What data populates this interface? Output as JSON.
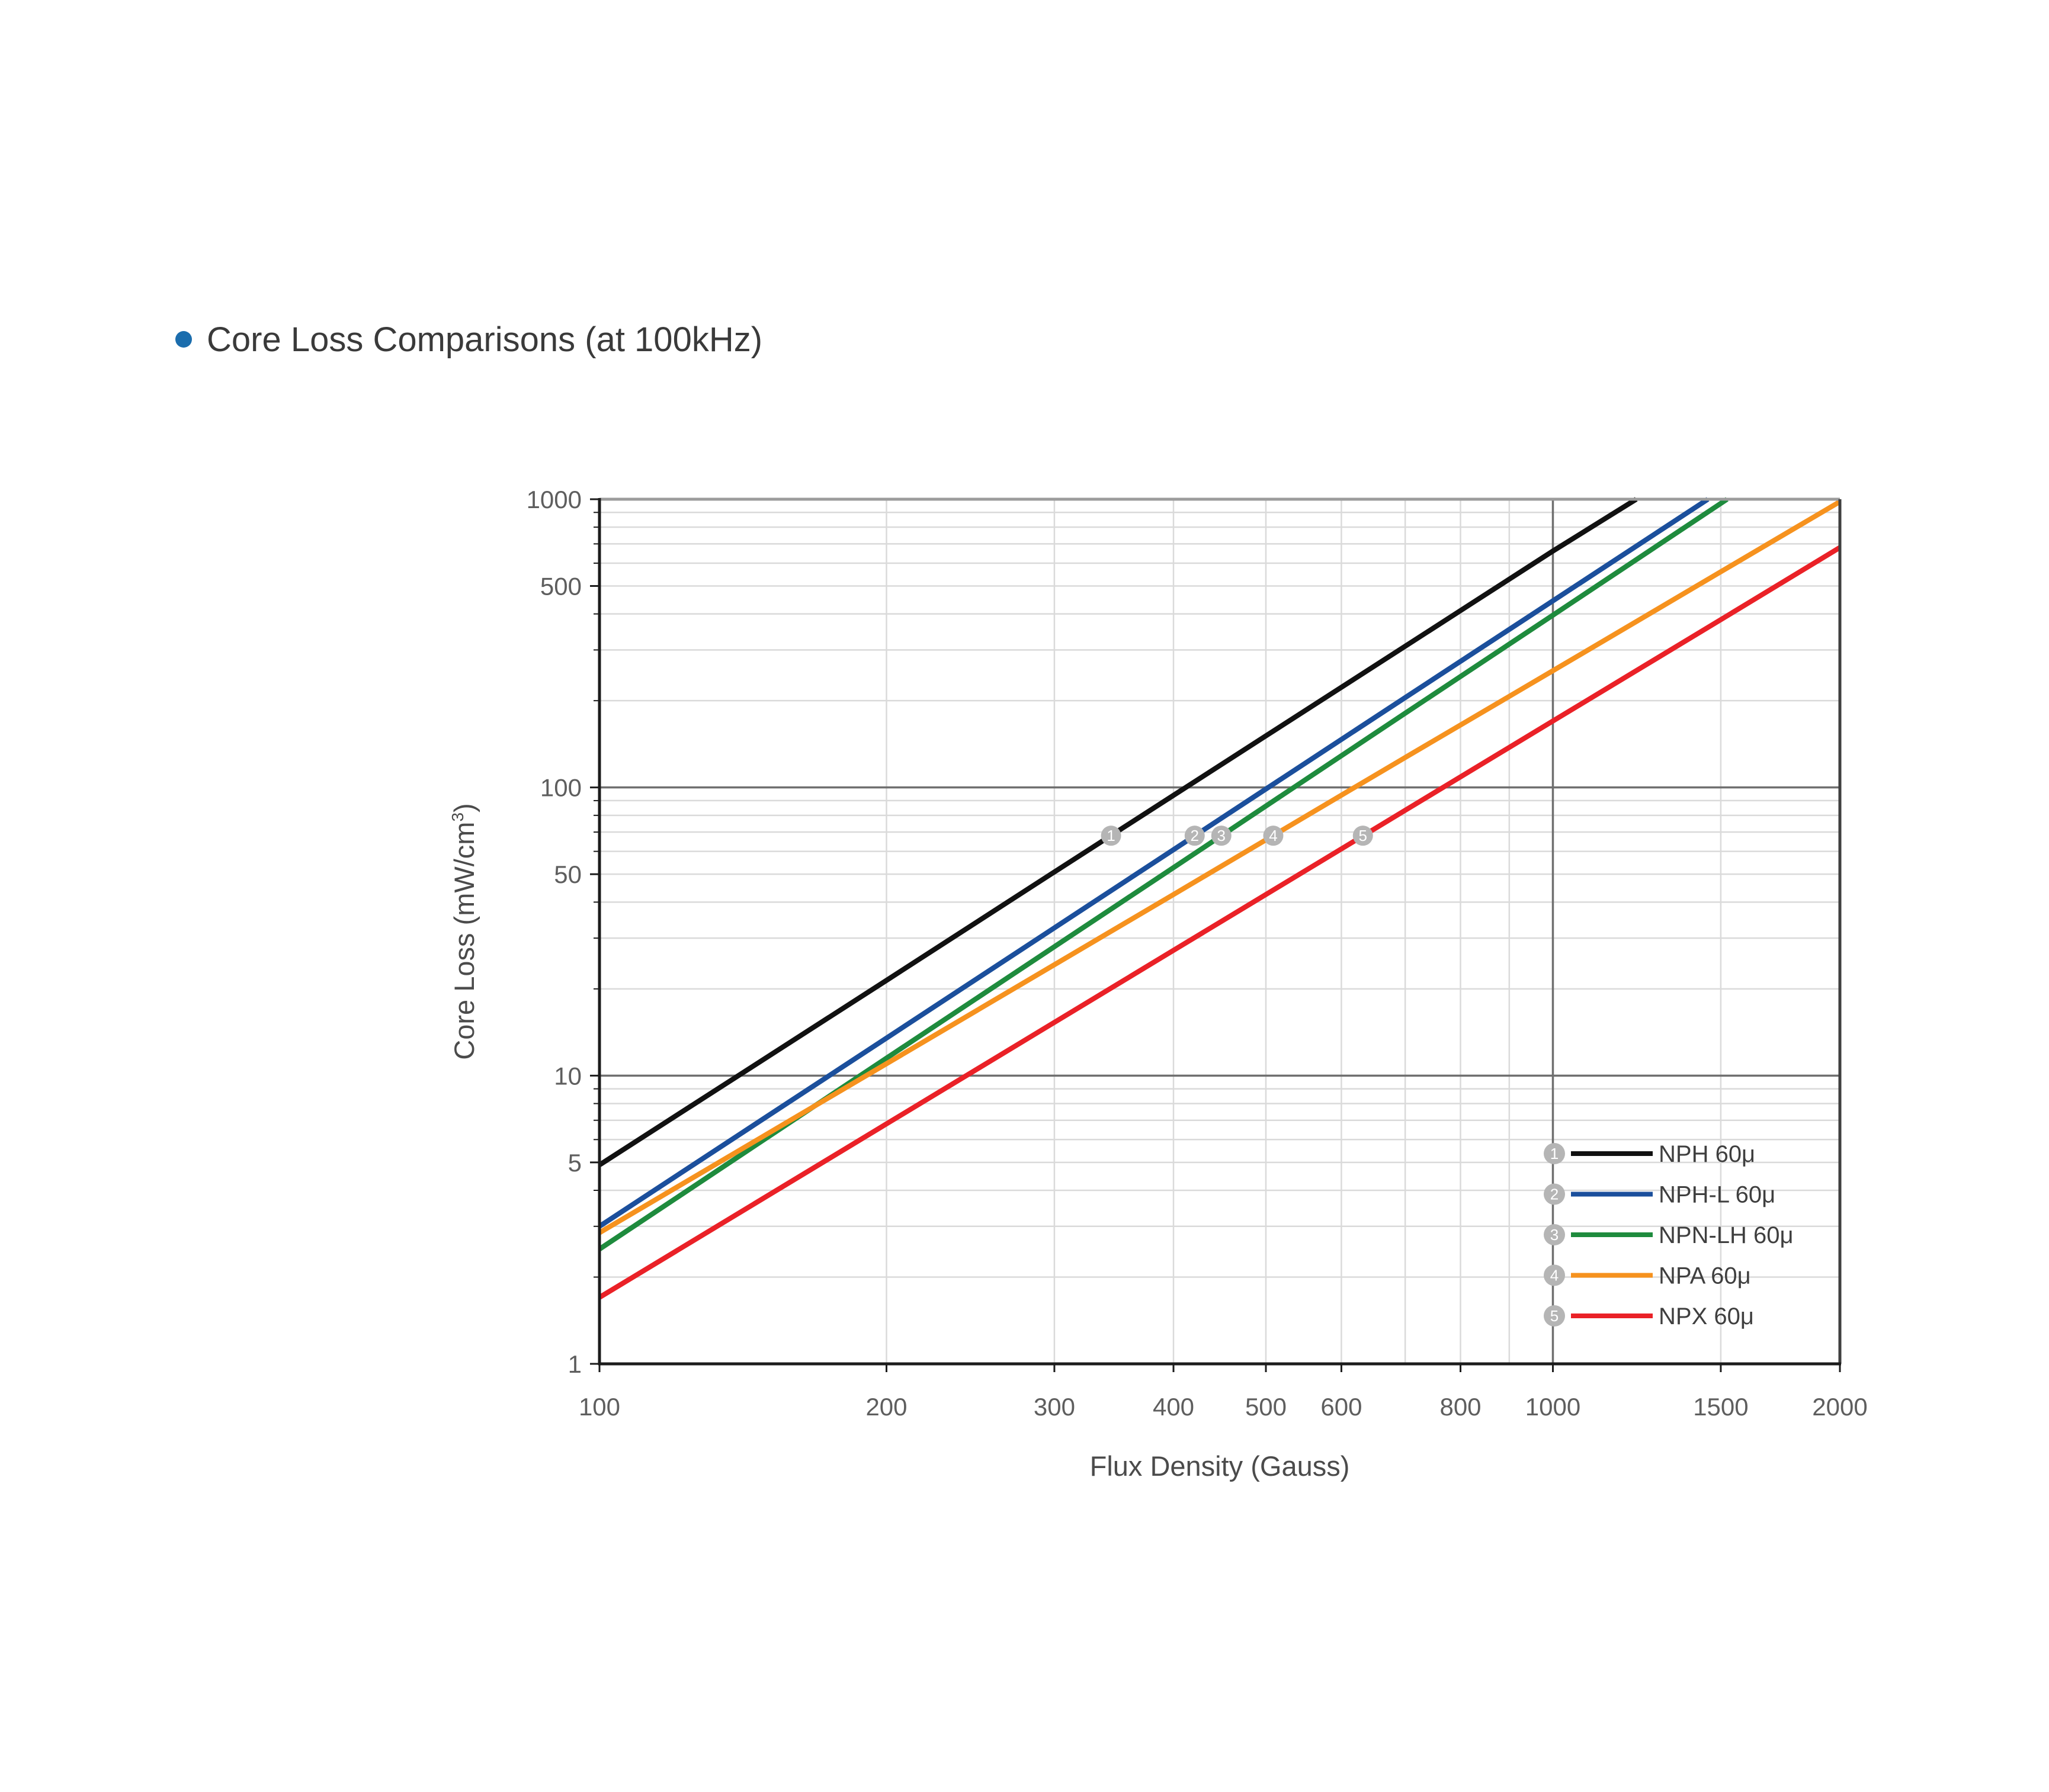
{
  "page": {
    "title": "Core Loss Comparisons (at 100kHz)"
  },
  "chart_data": {
    "type": "line",
    "title": "Core Loss Comparisons (at 100kHz)",
    "x_scale": "log",
    "y_scale": "log",
    "xlabel": "Flux Density (Gauss)",
    "ylabel": "Core Loss (mW/cm³)",
    "ylabel_pre": "Core Loss (mW/cm",
    "ylabel_sup": "3",
    "ylabel_post": ")",
    "xlim": [
      100,
      2000
    ],
    "ylim": [
      1,
      1000
    ],
    "x_tick_labels": [
      "100",
      "200",
      "300",
      "400",
      "500",
      "600",
      "800",
      "1000",
      "1500",
      "2000"
    ],
    "x_tick_values": [
      100,
      200,
      300,
      400,
      500,
      600,
      800,
      1000,
      1500,
      2000
    ],
    "y_tick_labels": [
      "1000",
      "500",
      "100",
      "50",
      "10",
      "5",
      "1"
    ],
    "y_tick_values": [
      1000,
      500,
      100,
      50,
      10,
      5,
      1
    ],
    "x_minor_gridlines": [
      200,
      300,
      400,
      500,
      600,
      700,
      800,
      900,
      1500
    ],
    "x_major_gridlines": [
      1000
    ],
    "y_minor_gridlines": [
      2,
      3,
      4,
      5,
      6,
      7,
      8,
      9,
      20,
      30,
      40,
      50,
      60,
      70,
      80,
      90,
      200,
      300,
      400,
      500,
      600,
      700,
      800,
      900
    ],
    "y_major_gridlines": [
      10,
      100
    ],
    "grid_minor_color": "#dadada",
    "grid_major_color": "#6f6f6f",
    "border_top_color": "#9c9c9c",
    "border_axis_color": "#1c1c1c",
    "border_right_color": "#3f3f3f",
    "marker_fill_color": "#b5b5b5",
    "legend_position": "bottom-right-inside",
    "series": [
      {
        "number": "1",
        "name": "NPH 60μ",
        "color": "#111111",
        "loss_at_100G": 4.9,
        "exponent": 2.13,
        "points": [
          [
            100,
            4.9
          ],
          [
            200,
            21.4
          ],
          [
            300,
            50.9
          ],
          [
            400,
            93.9
          ],
          [
            500,
            151
          ],
          [
            700,
            309
          ],
          [
            1000,
            661
          ],
          [
            1223,
            1000
          ]
        ],
        "marker": {
          "label": "1",
          "G": 344,
          "loss": 68
        }
      },
      {
        "number": "2",
        "name": "NPH-L 60μ",
        "color": "#1b4f9c",
        "loss_at_100G": 3.0,
        "exponent": 2.17,
        "points": [
          [
            100,
            3.0
          ],
          [
            200,
            13.5
          ],
          [
            400,
            60.8
          ],
          [
            700,
            205
          ],
          [
            1000,
            444
          ],
          [
            1454,
            1000
          ]
        ],
        "marker": {
          "label": "2",
          "G": 421,
          "loss": 68
        }
      },
      {
        "number": "3",
        "name": "NPN-LH 60μ",
        "color": "#1e8b3d",
        "loss_at_100G": 2.5,
        "exponent": 2.2,
        "points": [
          [
            100,
            2.5
          ],
          [
            200,
            11.5
          ],
          [
            400,
            52.7
          ],
          [
            700,
            181
          ],
          [
            1000,
            396
          ],
          [
            1523,
            1000
          ]
        ],
        "marker": {
          "label": "3",
          "G": 449,
          "loss": 68
        }
      },
      {
        "number": "4",
        "name": "NPA 60μ",
        "color": "#f6921e",
        "loss_at_100G": 2.85,
        "exponent": 1.95,
        "points": [
          [
            100,
            2.85
          ],
          [
            200,
            11.0
          ],
          [
            400,
            42.5
          ],
          [
            700,
            127
          ],
          [
            1000,
            254
          ],
          [
            1500,
            560
          ],
          [
            2000,
            981
          ]
        ],
        "marker": {
          "label": "4",
          "G": 509,
          "loss": 68
        }
      },
      {
        "number": "5",
        "name": "NPX 60μ",
        "color": "#ea2127",
        "loss_at_100G": 1.7,
        "exponent": 2.0,
        "points": [
          [
            100,
            1.7
          ],
          [
            200,
            6.8
          ],
          [
            400,
            27.2
          ],
          [
            700,
            83.3
          ],
          [
            1000,
            170
          ],
          [
            1500,
            382
          ],
          [
            2000,
            680
          ]
        ],
        "marker": {
          "label": "5",
          "G": 632,
          "loss": 68
        }
      }
    ]
  }
}
